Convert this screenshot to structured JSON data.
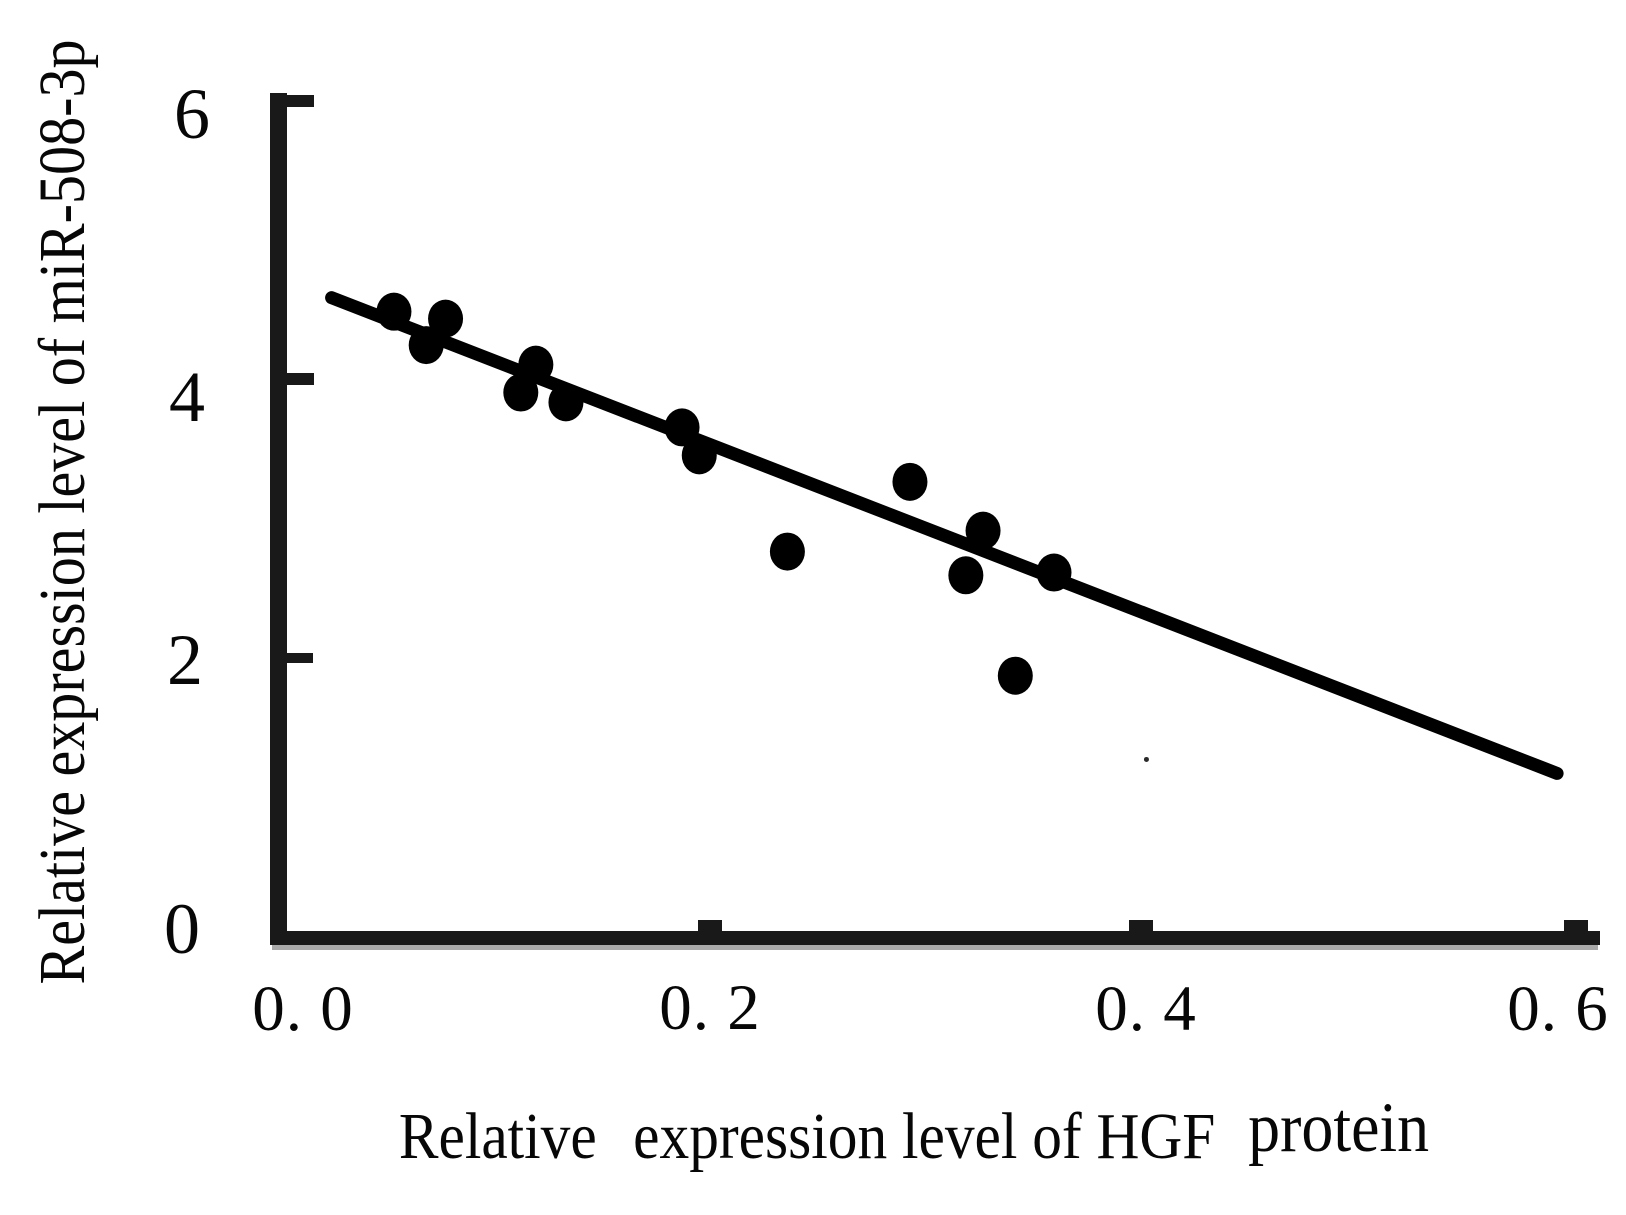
{
  "figure": {
    "background": "#ffffff",
    "ink_color": "#000000",
    "type_label": "scatter plot with regression line"
  },
  "axes": {
    "y": {
      "title": "Relative expression level of miR-508-3p",
      "range": [
        0,
        6
      ],
      "ticks": [
        {
          "label": "6",
          "value": 6
        },
        {
          "label": "4",
          "value": 4
        },
        {
          "label": "2",
          "value": 2
        },
        {
          "label": "0",
          "value": 0
        }
      ]
    },
    "x": {
      "title_full": "Relative expression level of HGF protein",
      "title_lead": "Relative",
      "title_mid": "expression level of HGF",
      "title_tail": "protein",
      "range": [
        0,
        0.6
      ],
      "ticks": [
        {
          "label": "0. 0",
          "value": 0.0
        },
        {
          "label": "0. 2",
          "value": 0.2
        },
        {
          "label": "0. 4",
          "value": 0.4
        },
        {
          "label": "0. 6",
          "value": 0.6
        }
      ]
    }
  },
  "chart_data": {
    "type": "scatter",
    "title": "",
    "xlabel": "Relative expression level of HGF protein",
    "ylabel": "Relative expression level of miR-508-3p",
    "xlim": [
      0,
      0.6
    ],
    "ylim": [
      0,
      6
    ],
    "x_ticks": [
      0.0,
      0.2,
      0.4,
      0.6
    ],
    "y_ticks": [
      0,
      2,
      4,
      6
    ],
    "grid": false,
    "legend": "none",
    "marker_color": "#000000",
    "line_color": "#000000",
    "points": [
      {
        "x": 0.053,
        "y": 4.49
      },
      {
        "x": 0.077,
        "y": 4.44
      },
      {
        "x": 0.068,
        "y": 4.25
      },
      {
        "x": 0.119,
        "y": 4.11
      },
      {
        "x": 0.112,
        "y": 3.91
      },
      {
        "x": 0.133,
        "y": 3.84
      },
      {
        "x": 0.187,
        "y": 3.66
      },
      {
        "x": 0.195,
        "y": 3.46
      },
      {
        "x": 0.236,
        "y": 2.77
      },
      {
        "x": 0.293,
        "y": 3.27
      },
      {
        "x": 0.327,
        "y": 2.92
      },
      {
        "x": 0.319,
        "y": 2.6
      },
      {
        "x": 0.36,
        "y": 2.62
      },
      {
        "x": 0.342,
        "y": 1.88
      }
    ],
    "trend_line": {
      "x1": 0.024,
      "y1": 4.59,
      "x2": 0.594,
      "y2": 1.18
    },
    "artifact_point": {
      "x": 0.403,
      "y": 1.28
    }
  }
}
